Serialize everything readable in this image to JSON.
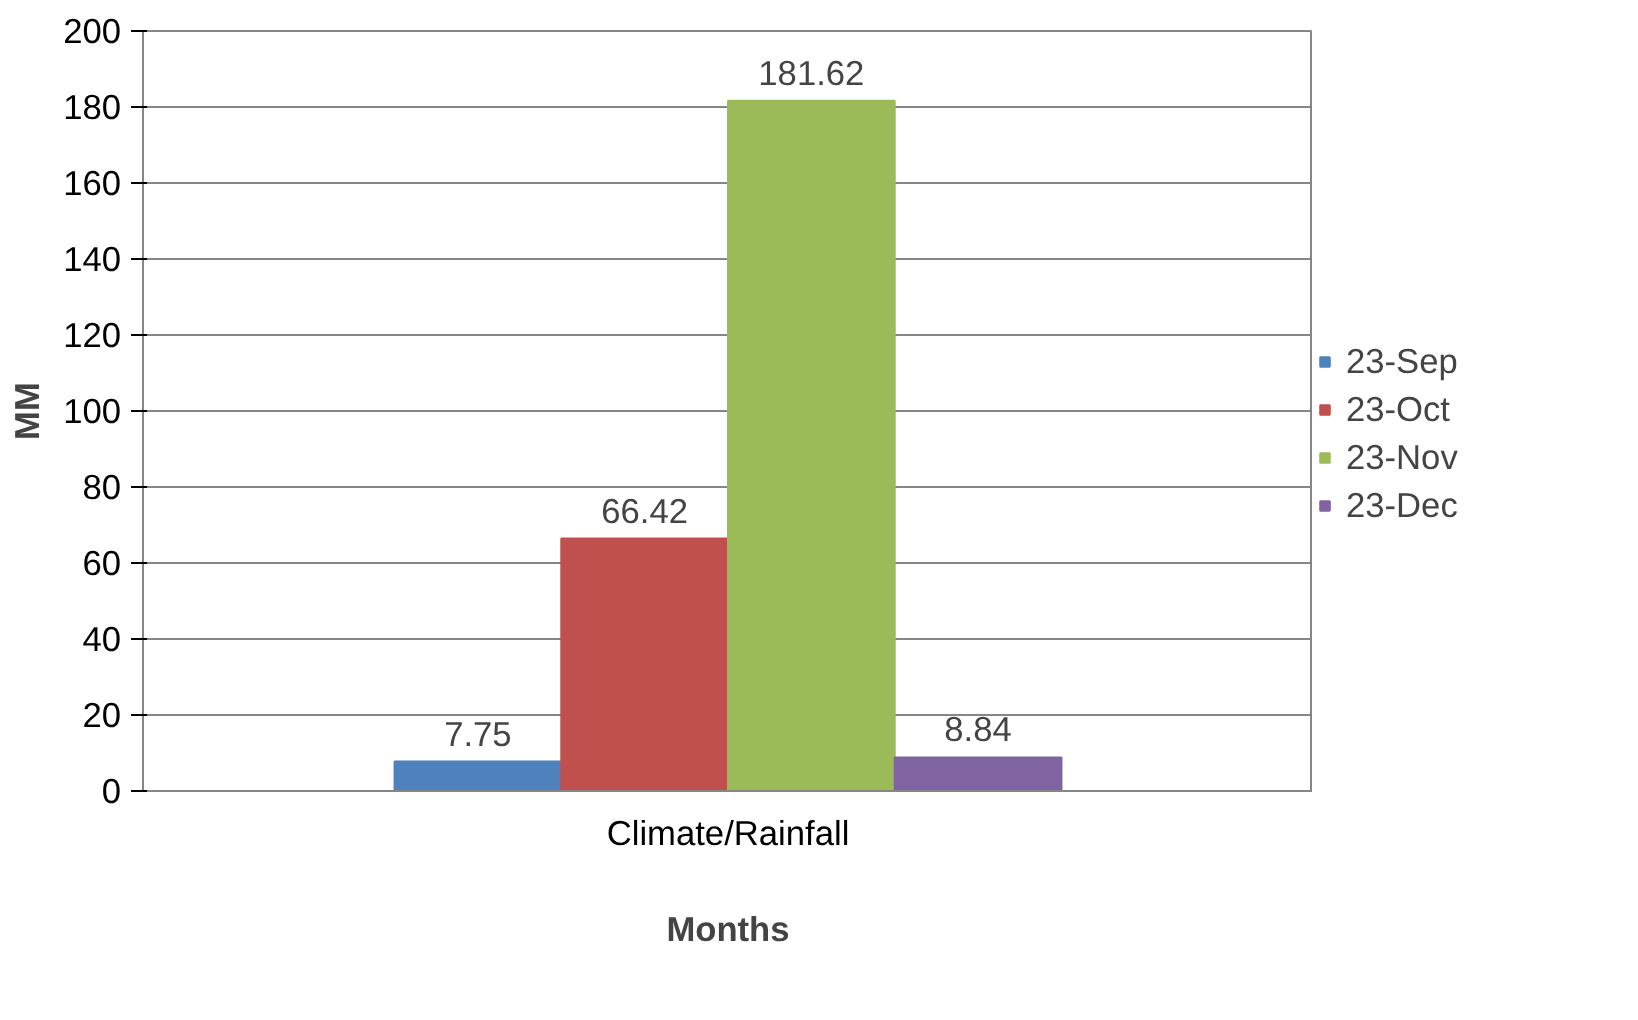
{
  "chart_data": {
    "type": "bar",
    "xlabel": "Months",
    "ylabel": "MM",
    "categories": [
      "Climate/Rainfall"
    ],
    "series": [
      {
        "name": "23-Sep",
        "color": "#4f81bd",
        "values": [
          7.75
        ]
      },
      {
        "name": "23-Oct",
        "color": "#c0504d",
        "values": [
          66.42
        ]
      },
      {
        "name": "23-Nov",
        "color": "#9bbb59",
        "values": [
          181.62
        ]
      },
      {
        "name": "23-Dec",
        "color": "#8064a2",
        "values": [
          8.84
        ]
      }
    ],
    "ylim": [
      0,
      200
    ],
    "yticks": [
      0,
      20,
      40,
      60,
      80,
      100,
      120,
      140,
      160,
      180,
      200
    ],
    "grid": "y",
    "legend": "right",
    "data_labels": true
  }
}
